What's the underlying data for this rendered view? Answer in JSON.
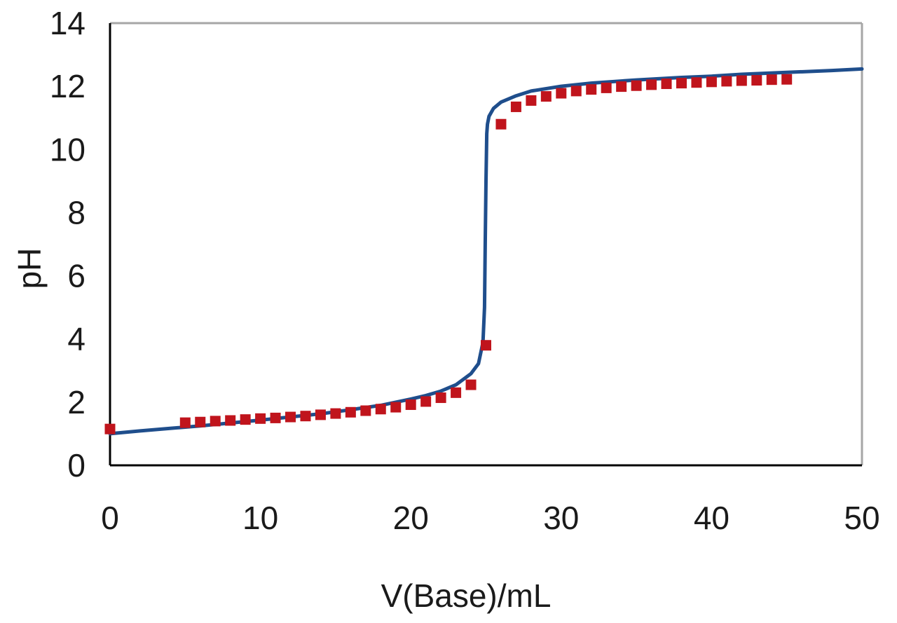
{
  "chart_data": {
    "type": "scatter",
    "title": "",
    "xlabel": "V(Base)/mL",
    "ylabel": "pH",
    "xlim": [
      0,
      50
    ],
    "ylim": [
      0,
      14
    ],
    "xticks": [
      0,
      10,
      20,
      30,
      40,
      50
    ],
    "yticks": [
      0,
      2,
      4,
      6,
      8,
      10,
      12,
      14
    ],
    "grid": false,
    "legend": "none",
    "colors": {
      "curve": "#1f4e8c",
      "markers": "#c0141c",
      "axes": "#000000",
      "frame": "#a6a6a6"
    },
    "series": [
      {
        "kind": "markers",
        "marker": "square",
        "x": [
          0,
          5,
          6,
          7,
          8,
          9,
          10,
          11,
          12,
          13,
          14,
          15,
          16,
          17,
          18,
          19,
          20,
          21,
          22,
          23,
          24,
          25,
          26,
          27,
          28,
          29,
          30,
          31,
          32,
          33,
          34,
          35,
          36,
          37,
          38,
          39,
          40,
          41,
          42,
          43,
          44,
          45
        ],
        "y": [
          1.15,
          1.35,
          1.37,
          1.4,
          1.42,
          1.45,
          1.48,
          1.5,
          1.53,
          1.56,
          1.6,
          1.64,
          1.68,
          1.73,
          1.78,
          1.84,
          1.92,
          2.02,
          2.14,
          2.3,
          2.55,
          3.8,
          10.8,
          11.35,
          11.55,
          11.68,
          11.78,
          11.85,
          11.9,
          11.95,
          11.99,
          12.02,
          12.05,
          12.08,
          12.1,
          12.12,
          12.14,
          12.16,
          12.18,
          12.19,
          12.21,
          12.22
        ]
      },
      {
        "kind": "line",
        "x": [
          0,
          2,
          4,
          6,
          8,
          10,
          12,
          14,
          16,
          18,
          20,
          21,
          22,
          23,
          24,
          24.5,
          24.8,
          24.9,
          24.95,
          25,
          25.05,
          25.1,
          25.2,
          25.5,
          26,
          27,
          28,
          30,
          32,
          35,
          38,
          40,
          42,
          45,
          48,
          50
        ],
        "y": [
          1.0,
          1.09,
          1.17,
          1.25,
          1.34,
          1.43,
          1.53,
          1.63,
          1.76,
          1.9,
          2.1,
          2.21,
          2.35,
          2.55,
          2.9,
          3.22,
          3.9,
          5.0,
          7.0,
          9.0,
          10.5,
          10.8,
          11.05,
          11.3,
          11.5,
          11.7,
          11.85,
          12.0,
          12.1,
          12.2,
          12.28,
          12.32,
          12.38,
          12.44,
          12.5,
          12.55
        ]
      }
    ]
  }
}
